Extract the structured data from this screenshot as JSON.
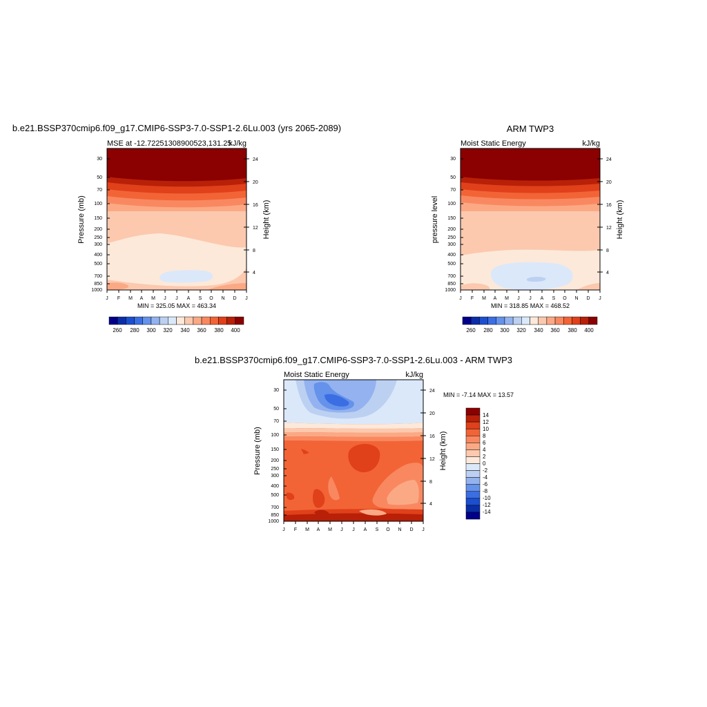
{
  "palette": [
    "#00008b",
    "#0a2ea8",
    "#1c4fd0",
    "#3b6ee3",
    "#6592ea",
    "#93b2ef",
    "#bcd0f2",
    "#dbe8fa",
    "#fde9da",
    "#fcc9ae",
    "#fba985",
    "#f98860",
    "#f26436",
    "#e0401a",
    "#b82008",
    "#8b0000"
  ],
  "chart_data": [
    {
      "type": "heatmap",
      "title": "b.e21.BSSP370cmip6.f09_g17.CMIP6-SSP3-7.0-SSP1-2.6Lu.003 (yrs 2065-2089)",
      "left_label": "MSE at -12.72251308900523,131.25",
      "right_label": "kJ/kg",
      "ylabel": "Pressure (mb)",
      "ylabel_right": "Height (km)",
      "x_ticks": [
        "J",
        "F",
        "M",
        "A",
        "M",
        "J",
        "J",
        "A",
        "S",
        "O",
        "N",
        "D",
        "J"
      ],
      "y_ticks": [
        "30",
        "50",
        "70",
        "100",
        "150",
        "200",
        "250",
        "300",
        "400",
        "500",
        "700",
        "850",
        "1000"
      ],
      "y_ticks_right": [
        "24",
        "20",
        "16",
        "12",
        "8",
        "4"
      ],
      "ylim": [
        1000,
        20
      ],
      "stats": "MIN = 325.05 MAX = 463.34",
      "colorbar": {
        "orientation": "horizontal",
        "labels": [
          "260",
          "280",
          "300",
          "320",
          "340",
          "360",
          "380",
          "400"
        ]
      }
    },
    {
      "type": "heatmap",
      "title": "ARM TWP3",
      "left_label": "Moist Static Energy",
      "right_label": "kJ/kg",
      "ylabel": "pressure level",
      "ylabel_right": "Height (km)",
      "x_ticks": [
        "J",
        "F",
        "M",
        "A",
        "M",
        "J",
        "J",
        "A",
        "S",
        "O",
        "N",
        "D",
        "J"
      ],
      "y_ticks": [
        "30",
        "50",
        "70",
        "100",
        "150",
        "200",
        "250",
        "300",
        "400",
        "500",
        "700",
        "850",
        "1000"
      ],
      "y_ticks_right": [
        "24",
        "20",
        "16",
        "12",
        "8",
        "4"
      ],
      "ylim": [
        1000,
        20
      ],
      "stats": "MIN = 318.85 MAX = 468.52",
      "colorbar": {
        "orientation": "horizontal",
        "labels": [
          "260",
          "280",
          "300",
          "320",
          "340",
          "360",
          "380",
          "400"
        ]
      }
    },
    {
      "type": "heatmap",
      "title": "b.e21.BSSP370cmip6.f09_g17.CMIP6-SSP3-7.0-SSP1-2.6Lu.003 - ARM TWP3",
      "left_label": "Moist Static Energy",
      "right_label": "kJ/kg",
      "ylabel": "Pressure (mb)",
      "ylabel_right": "Height (km)",
      "x_ticks": [
        "J",
        "F",
        "M",
        "A",
        "M",
        "J",
        "J",
        "A",
        "S",
        "O",
        "N",
        "D",
        "J"
      ],
      "y_ticks": [
        "30",
        "50",
        "70",
        "100",
        "150",
        "200",
        "250",
        "300",
        "400",
        "500",
        "700",
        "850",
        "1000"
      ],
      "y_ticks_right": [
        "24",
        "20",
        "16",
        "12",
        "8",
        "4"
      ],
      "ylim": [
        1000,
        20
      ],
      "stats": "MIN =  -7.14 MAX =  13.57",
      "colorbar": {
        "orientation": "vertical",
        "labels": [
          "14",
          "12",
          "10",
          "8",
          "6",
          "4",
          "2",
          "0",
          "-2",
          "-4",
          "-6",
          "-8",
          "-10",
          "-12",
          "-14"
        ]
      }
    }
  ]
}
